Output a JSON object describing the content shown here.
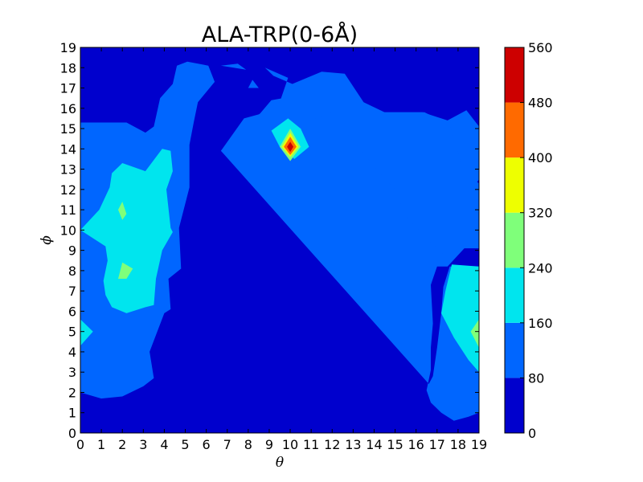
{
  "chart_data": {
    "type": "contour",
    "title": "ALA-TRP(0-6Å)",
    "xlabel": "θ",
    "ylabel": "ϕ",
    "xlim": [
      0,
      19
    ],
    "ylim": [
      0,
      19
    ],
    "x_ticks": [
      "0",
      "1",
      "2",
      "3",
      "4",
      "5",
      "6",
      "7",
      "8",
      "9",
      "10",
      "11",
      "12",
      "13",
      "14",
      "15",
      "16",
      "17",
      "18",
      "19"
    ],
    "y_ticks": [
      "0",
      "1",
      "2",
      "3",
      "4",
      "5",
      "6",
      "7",
      "8",
      "9",
      "10",
      "11",
      "12",
      "13",
      "14",
      "15",
      "16",
      "17",
      "18",
      "19"
    ],
    "colorbar": {
      "levels": [
        0,
        80,
        160,
        240,
        320,
        400,
        480,
        560
      ],
      "tick_labels": [
        "0",
        "80",
        "160",
        "240",
        "320",
        "400",
        "480",
        "560"
      ],
      "colors": [
        "#0000cd",
        "#0066ff",
        "#00e5ee",
        "#7fff7a",
        "#eeff00",
        "#ff6a00",
        "#cd0000"
      ]
    },
    "regions": [
      {
        "level_index": 1,
        "points": [
          [
            0,
            2
          ],
          [
            1,
            1.7
          ],
          [
            2,
            1.8
          ],
          [
            3,
            2.3
          ],
          [
            3.5,
            2.7
          ],
          [
            3.3,
            4
          ],
          [
            4,
            5.9
          ],
          [
            4.3,
            6.1
          ],
          [
            4.2,
            7.6
          ],
          [
            4.8,
            8.1
          ],
          [
            4.7,
            10.1
          ],
          [
            5.2,
            12.1
          ],
          [
            5.2,
            14.2
          ],
          [
            5.4,
            15.3
          ],
          [
            5.6,
            16.3
          ],
          [
            6.4,
            17.3
          ],
          [
            6.1,
            18.1
          ],
          [
            5.1,
            18.3
          ],
          [
            4.6,
            18.1
          ],
          [
            4.4,
            17.2
          ],
          [
            3.8,
            16.5
          ],
          [
            3.5,
            15.1
          ],
          [
            3.1,
            14.8
          ],
          [
            2.2,
            15.3
          ],
          [
            0,
            15.3
          ]
        ]
      },
      {
        "level_index": 1,
        "points": [
          [
            6.7,
            13.9
          ],
          [
            7.5,
            14.7
          ],
          [
            8.2,
            15.3
          ],
          [
            9.1,
            16.4
          ],
          [
            10.2,
            16.6
          ],
          [
            11,
            17.3
          ],
          [
            12,
            17.7
          ],
          [
            13,
            17
          ],
          [
            13.7,
            16
          ],
          [
            14.5,
            15.8
          ],
          [
            16.3,
            15.8
          ],
          [
            17.5,
            15.4
          ],
          [
            18.4,
            15.9
          ],
          [
            19,
            15.1
          ],
          [
            19,
            12.5
          ],
          [
            18.8,
            12.2
          ],
          [
            18.8,
            10.7
          ],
          [
            18.1,
            9.1
          ],
          [
            17.5,
            8.2
          ],
          [
            17,
            8.2
          ],
          [
            16.7,
            7.3
          ],
          [
            16.8,
            5.4
          ],
          [
            16.7,
            4.2
          ],
          [
            16.7,
            3.1
          ],
          [
            16.5,
            2.1
          ],
          [
            16.7,
            1.5
          ],
          [
            17.2,
            1
          ],
          [
            17.8,
            0.6
          ],
          [
            18.5,
            0.8
          ],
          [
            19,
            1
          ],
          [
            19,
            8.2
          ],
          [
            17.6,
            8.2
          ],
          [
            17.3,
            7.2
          ],
          [
            17.2,
            5.9
          ],
          [
            17,
            4.2
          ],
          [
            16.8,
            2.8
          ],
          [
            16.6,
            2.4
          ],
          [
            17.4,
            1.5
          ]
        ]
      },
      {
        "level_index": 1,
        "points": [
          [
            6.7,
            13.9
          ],
          [
            7.2,
            13.4
          ],
          [
            7.9,
            14.3
          ],
          [
            8.8,
            14.4
          ],
          [
            9.5,
            14.1
          ],
          [
            10.4,
            14.1
          ],
          [
            11,
            15.4
          ],
          [
            11.9,
            15.8
          ],
          [
            13.3,
            14
          ],
          [
            14.2,
            12.9
          ],
          [
            15,
            12
          ],
          [
            15.5,
            10.7
          ],
          [
            16.4,
            9.7
          ],
          [
            17.3,
            8.8
          ],
          [
            17.5,
            8.2
          ],
          [
            18.3,
            9.1
          ],
          [
            19,
            9.1
          ],
          [
            19,
            12.3
          ],
          [
            18.3,
            12.8
          ],
          [
            17.6,
            15.2
          ],
          [
            16.4,
            15.8
          ],
          [
            14.5,
            15.8
          ],
          [
            13.5,
            16.3
          ],
          [
            12.6,
            17.7
          ],
          [
            11.5,
            17.8
          ],
          [
            10.8,
            17.5
          ],
          [
            10.1,
            17.2
          ],
          [
            9.2,
            17.6
          ],
          [
            8.8,
            18
          ],
          [
            9.9,
            17.5
          ],
          [
            9.5,
            16.3
          ],
          [
            8.5,
            15.7
          ],
          [
            7.8,
            15.5
          ]
        ]
      },
      {
        "level_index": 1,
        "points": [
          [
            8,
            17
          ],
          [
            8.5,
            17
          ],
          [
            8.2,
            17.4
          ]
        ]
      },
      {
        "level_index": 1,
        "points": [
          [
            6.7,
            18.1
          ],
          [
            7.5,
            18.2
          ],
          [
            7.9,
            17.9
          ]
        ]
      },
      {
        "level_index": 2,
        "points": [
          [
            0,
            10
          ],
          [
            0.9,
            11
          ],
          [
            1.4,
            12.1
          ],
          [
            1.5,
            12.8
          ],
          [
            2,
            13.3
          ],
          [
            3.1,
            12.9
          ],
          [
            3.9,
            14
          ],
          [
            4.3,
            13.9
          ],
          [
            4.4,
            12.9
          ],
          [
            4.1,
            12
          ],
          [
            4.3,
            10.1
          ],
          [
            4.4,
            9.9
          ],
          [
            3.9,
            9
          ],
          [
            3.6,
            7.6
          ],
          [
            3.5,
            6.3
          ],
          [
            3.1,
            6.2
          ],
          [
            2.2,
            5.9
          ],
          [
            1.5,
            6.2
          ],
          [
            1.2,
            6.8
          ],
          [
            1.1,
            7.5
          ],
          [
            1.3,
            8.5
          ],
          [
            1.2,
            9.2
          ]
        ]
      },
      {
        "level_index": 2,
        "points": [
          [
            0,
            5.6
          ],
          [
            0.6,
            5
          ],
          [
            0,
            4.3
          ]
        ]
      },
      {
        "level_index": 2,
        "points": [
          [
            17.7,
            8.3
          ],
          [
            19,
            8.2
          ],
          [
            19,
            3
          ],
          [
            18.5,
            3.6
          ],
          [
            17.8,
            4.7
          ],
          [
            17.2,
            5.9
          ],
          [
            17.4,
            7
          ]
        ]
      },
      {
        "level_index": 2,
        "points": [
          [
            9.1,
            14.9
          ],
          [
            9.9,
            15.5
          ],
          [
            10.5,
            15
          ],
          [
            10.9,
            14.1
          ],
          [
            10.2,
            13.5
          ],
          [
            9.5,
            14.1
          ]
        ]
      },
      {
        "level_index": 3,
        "points": [
          [
            1.8,
            11
          ],
          [
            2,
            11.4
          ],
          [
            2.2,
            10.8
          ],
          [
            2,
            10.5
          ]
        ]
      },
      {
        "level_index": 3,
        "points": [
          [
            1.8,
            7.6
          ],
          [
            2.2,
            7.6
          ],
          [
            2.5,
            8.1
          ],
          [
            2,
            8.4
          ]
        ]
      },
      {
        "level_index": 3,
        "points": [
          [
            18.6,
            5
          ],
          [
            19,
            5.6
          ],
          [
            19,
            4.2
          ]
        ]
      },
      {
        "level_index": 3,
        "points": [
          [
            9.5,
            14.1
          ],
          [
            10,
            15
          ],
          [
            10.5,
            14.1
          ],
          [
            10,
            13.4
          ]
        ]
      },
      {
        "level_index": 4,
        "points": [
          [
            9.6,
            14.1
          ],
          [
            10,
            14.8
          ],
          [
            10.4,
            14.1
          ],
          [
            10,
            13.6
          ]
        ]
      },
      {
        "level_index": 5,
        "points": [
          [
            9.7,
            14.1
          ],
          [
            10,
            14.6
          ],
          [
            10.3,
            14.1
          ],
          [
            10,
            13.7
          ]
        ]
      },
      {
        "level_index": 6,
        "points": [
          [
            9.85,
            14.1
          ],
          [
            10,
            14.35
          ],
          [
            10.15,
            14.1
          ],
          [
            10,
            13.85
          ]
        ]
      }
    ]
  }
}
